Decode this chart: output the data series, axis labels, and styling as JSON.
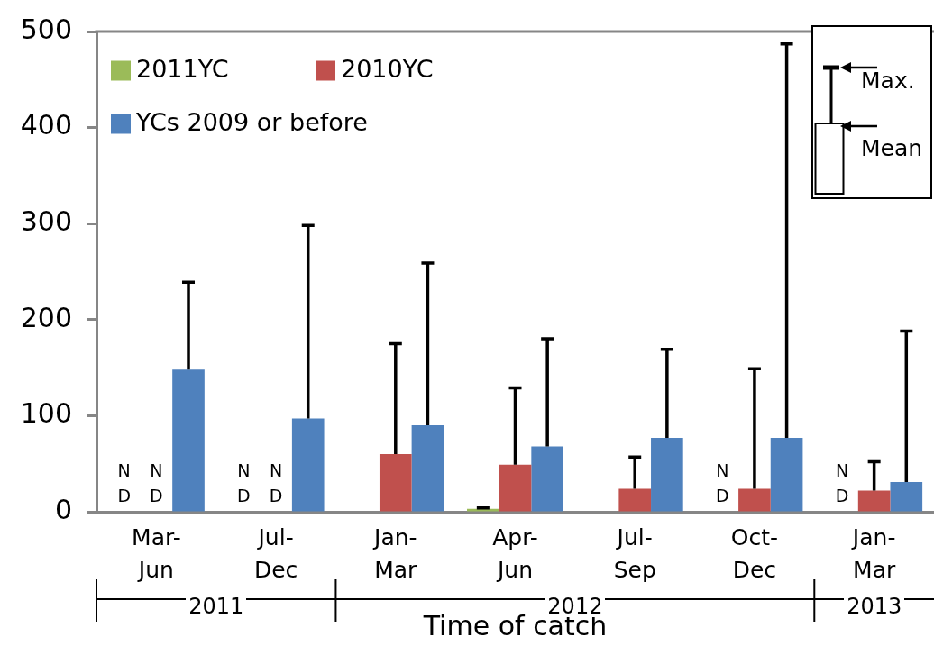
{
  "chart_data": {
    "type": "bar",
    "categories": [
      "Mar-\nJun",
      "Jul-\nDec",
      "Jan-\nMar",
      "Apr-\nJun",
      "Jul-\nSep",
      "Oct-\nDec",
      "Jan-\nMar"
    ],
    "series": [
      {
        "name": "2011YC",
        "color": "#9bbb59",
        "values": [
          null,
          null,
          null,
          3,
          null,
          null,
          null
        ],
        "errors": [
          null,
          null,
          null,
          [
            3,
            4
          ],
          null,
          null,
          null
        ],
        "value_labels": [
          "N\nD",
          "N\nD",
          null,
          null,
          null,
          "N\nD",
          "N\nD"
        ]
      },
      {
        "name": "2010YC",
        "color": "#c0504d",
        "values": [
          null,
          null,
          60,
          49,
          24,
          24,
          22
        ],
        "errors": [
          null,
          null,
          [
            60,
            175
          ],
          [
            49,
            129
          ],
          [
            24,
            57
          ],
          [
            24,
            149
          ],
          [
            22,
            52
          ]
        ],
        "value_labels": [
          "N\nD",
          "N\nD",
          null,
          null,
          null,
          null,
          null
        ]
      },
      {
        "name": "YCs 2009 or before",
        "color": "#4f81bd",
        "values": [
          148,
          97,
          90,
          68,
          77,
          77,
          31
        ],
        "errors": [
          [
            148,
            239
          ],
          [
            97,
            298
          ],
          [
            90,
            259
          ],
          [
            68,
            180
          ],
          [
            77,
            169
          ],
          [
            77,
            487
          ],
          [
            31,
            188
          ]
        ]
      }
    ],
    "xlabel": "Time of catch",
    "ylim": [
      0,
      500
    ],
    "yticks": [
      0,
      100,
      200,
      300,
      400,
      500
    ],
    "grid": false,
    "legend": "top left",
    "annotations": [
      "2011",
      "2012",
      "2013",
      "Max.",
      "Mean"
    ]
  }
}
